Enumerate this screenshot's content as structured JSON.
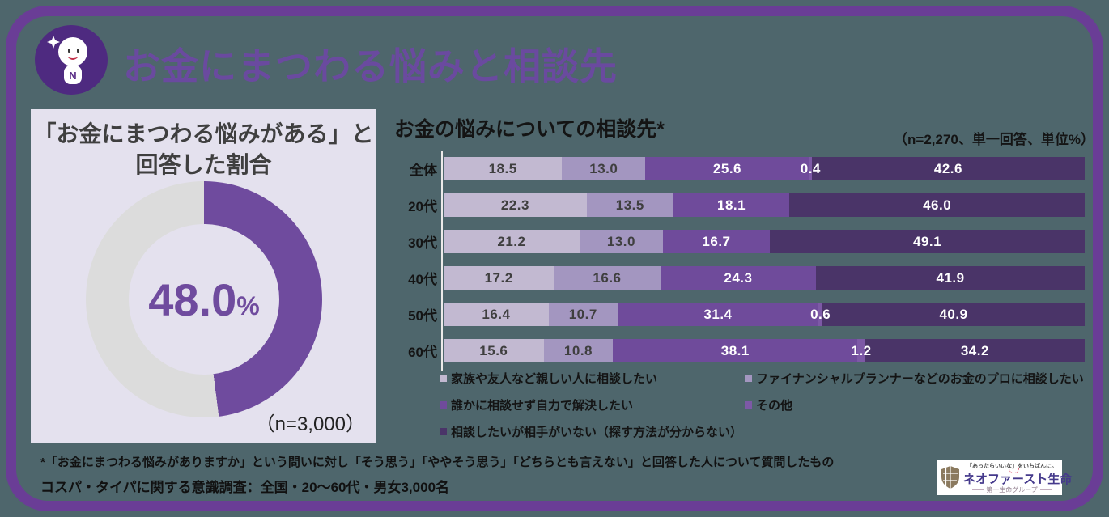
{
  "colors": {
    "background": "#4e666c",
    "frame_border": "#6a3d96",
    "header_title": "#6a4a9f",
    "panel_background": "#e4e1ee",
    "donut_purple": "#6f4b9e",
    "donut_gray": "#dcdcdc",
    "mascot_circle": "#4e2a80"
  },
  "header": {
    "title": "お金にまつわる悩みと相談先",
    "mascot_letter": "N"
  },
  "panel": {
    "title_line1": "「お金にまつわる悩みがある」と",
    "title_line2": "回答した割合",
    "center_value": "48.0",
    "center_unit": "%",
    "sample": "（n=3,000）"
  },
  "bar_chart": {
    "title": "お金の悩みについての相談先*",
    "note": "（n=2,270、単一回答、単位%）"
  },
  "footnotes": {
    "line1": "*「お金にまつわる悩みがありますか」という問いに対し「そう思う」「ややそう思う」「どちらとも言えない」と回答した人について質問したもの",
    "line2": "コスパ・タイパに関する意識調査：全国・20～60代・男女3,000名"
  },
  "logo": {
    "tagline": "「あったらいいな」をいちばんに。",
    "name": "ネオファースト生命",
    "group": "第一生命グループ"
  },
  "chart_data": [
    {
      "type": "pie",
      "subtype": "donut",
      "title": "「お金にまつわる悩みがある」と回答した割合",
      "center_label": "48.0%",
      "note": "（n=3,000）",
      "segments": [
        {
          "value": 48.0,
          "color": "#6f4b9e",
          "label": "48.0%"
        },
        {
          "value": 52.0,
          "color": "#dcdcdc",
          "label": ""
        }
      ]
    },
    {
      "type": "bar",
      "stacked": true,
      "horizontal": true,
      "title": "お金の悩みについての相談先*",
      "note": "（n=2,270、単一回答、単位%）",
      "xlim": [
        0,
        100
      ],
      "grid": false,
      "legend_position": "bottom",
      "categories": [
        "全体",
        "20代",
        "30代",
        "40代",
        "50代",
        "60代"
      ],
      "series": [
        {
          "name": "家族や友人など親しい人に相談したい",
          "color": "#c2b9d1",
          "label_color": "#3f3f3f",
          "values": [
            18.5,
            22.3,
            21.2,
            17.2,
            16.4,
            15.6
          ]
        },
        {
          "name": "ファイナンシャルプランナーなどのお金のプロに相談したい",
          "color": "#a396c0",
          "label_color": "#3f3f3f",
          "values": [
            13.0,
            13.5,
            13.0,
            16.6,
            10.7,
            10.8
          ]
        },
        {
          "name": "誰かに相談せず自力で解決したい",
          "color": "#6f4b9b",
          "label_color": "#ffffff",
          "values": [
            25.6,
            18.1,
            16.7,
            24.3,
            31.4,
            38.1
          ]
        },
        {
          "name": "その他",
          "color": "#7d59a6",
          "label_color": "#ffffff",
          "values": [
            0.4,
            0,
            0,
            0,
            0.6,
            1.2
          ]
        },
        {
          "name": "相談したいが相手がいない（探す方法が分からない）",
          "color": "#4a3468",
          "label_color": "#ffffff",
          "values": [
            42.6,
            46.0,
            49.1,
            41.9,
            40.9,
            34.2
          ]
        }
      ],
      "legend_positions": [
        [
          0,
          0
        ],
        [
          0,
          1
        ],
        [
          1,
          0
        ],
        [
          1,
          1
        ],
        [
          2,
          0
        ]
      ]
    }
  ]
}
